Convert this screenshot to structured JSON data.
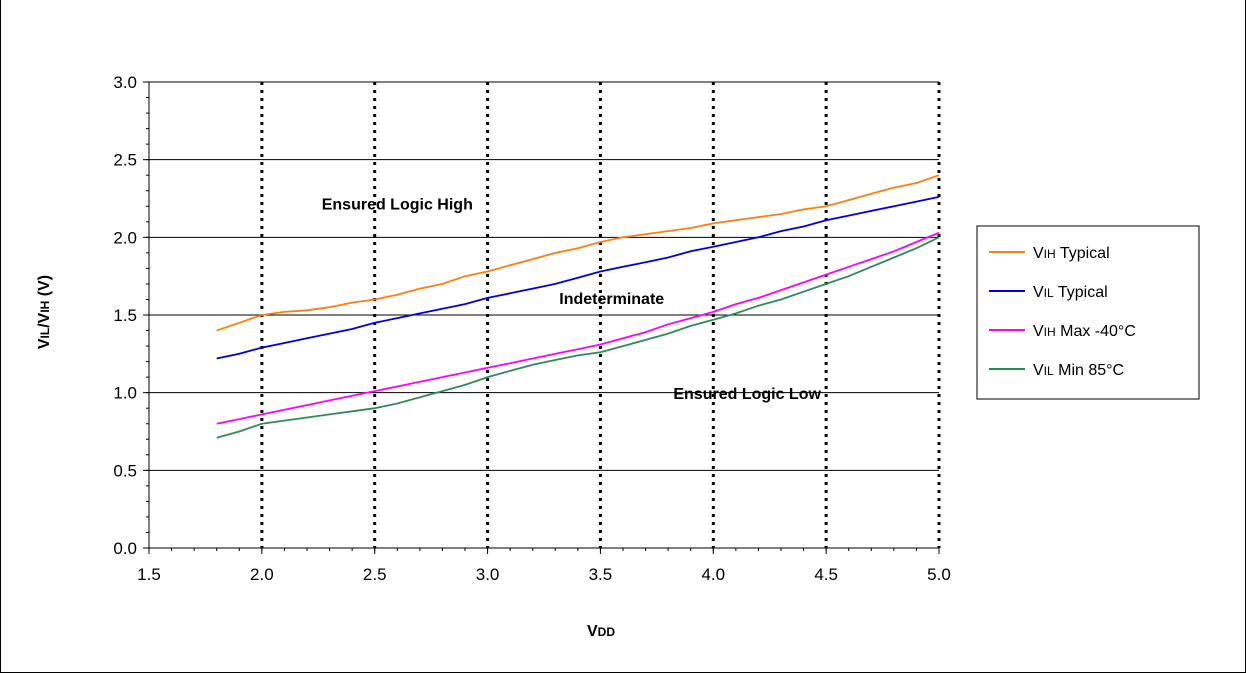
{
  "chart_data": {
    "type": "line",
    "xlabel": {
      "main": "V",
      "sub": "DD"
    },
    "ylabel": {
      "parts": [
        {
          "text": "V",
          "sub": false
        },
        {
          "text": "IL",
          "sub": true
        },
        {
          "text": "/V",
          "sub": false
        },
        {
          "text": "IH",
          "sub": true
        },
        {
          "text": " (V)",
          "sub": false
        }
      ]
    },
    "xlim": [
      1.5,
      5.0
    ],
    "ylim": [
      0.0,
      3.0
    ],
    "x_ticks": [
      "1.5",
      "2.0",
      "2.5",
      "3.0",
      "3.5",
      "4.0",
      "4.5",
      "5.0"
    ],
    "y_ticks": [
      "0.0",
      "0.5",
      "1.0",
      "1.5",
      "2.0",
      "2.5",
      "3.0"
    ],
    "grid": "horizontal solid lines at major y ticks; vertical dotted lines at major x ticks",
    "legend_position": "right",
    "annotations": [
      {
        "text": "Ensured Logic High",
        "x": 2.6,
        "y": 2.18
      },
      {
        "text": "Indeterminate",
        "x": 3.55,
        "y": 1.57
      },
      {
        "text": "Ensured Logic Low",
        "x": 4.15,
        "y": 0.96
      }
    ],
    "series": [
      {
        "name": "VIH Typical",
        "label_main": "V",
        "label_sub": "IH",
        "label_rest": " Typical",
        "color": "#ff7f0e",
        "points": [
          [
            1.8,
            1.4
          ],
          [
            1.9,
            1.45
          ],
          [
            2.0,
            1.5
          ],
          [
            2.1,
            1.52
          ],
          [
            2.2,
            1.53
          ],
          [
            2.3,
            1.55
          ],
          [
            2.4,
            1.58
          ],
          [
            2.5,
            1.6
          ],
          [
            2.6,
            1.63
          ],
          [
            2.7,
            1.67
          ],
          [
            2.8,
            1.7
          ],
          [
            2.9,
            1.75
          ],
          [
            3.0,
            1.78
          ],
          [
            3.1,
            1.82
          ],
          [
            3.2,
            1.86
          ],
          [
            3.3,
            1.9
          ],
          [
            3.4,
            1.93
          ],
          [
            3.5,
            1.97
          ],
          [
            3.6,
            2.0
          ],
          [
            3.7,
            2.02
          ],
          [
            3.8,
            2.04
          ],
          [
            3.9,
            2.06
          ],
          [
            4.0,
            2.09
          ],
          [
            4.1,
            2.11
          ],
          [
            4.2,
            2.13
          ],
          [
            4.3,
            2.15
          ],
          [
            4.4,
            2.18
          ],
          [
            4.5,
            2.2
          ],
          [
            4.6,
            2.24
          ],
          [
            4.7,
            2.28
          ],
          [
            4.8,
            2.32
          ],
          [
            4.9,
            2.35
          ],
          [
            5.0,
            2.4
          ]
        ]
      },
      {
        "name": "VIL Typical",
        "label_main": "V",
        "label_sub": "IL",
        "label_rest": " Typical",
        "color": "#0000dd",
        "points": [
          [
            1.8,
            1.22
          ],
          [
            1.9,
            1.25
          ],
          [
            2.0,
            1.29
          ],
          [
            2.1,
            1.32
          ],
          [
            2.2,
            1.35
          ],
          [
            2.3,
            1.38
          ],
          [
            2.4,
            1.41
          ],
          [
            2.5,
            1.45
          ],
          [
            2.6,
            1.48
          ],
          [
            2.7,
            1.51
          ],
          [
            2.8,
            1.54
          ],
          [
            2.9,
            1.57
          ],
          [
            3.0,
            1.61
          ],
          [
            3.1,
            1.64
          ],
          [
            3.2,
            1.67
          ],
          [
            3.3,
            1.7
          ],
          [
            3.4,
            1.74
          ],
          [
            3.5,
            1.78
          ],
          [
            3.6,
            1.81
          ],
          [
            3.7,
            1.84
          ],
          [
            3.8,
            1.87
          ],
          [
            3.9,
            1.91
          ],
          [
            4.0,
            1.94
          ],
          [
            4.1,
            1.97
          ],
          [
            4.2,
            2.0
          ],
          [
            4.3,
            2.04
          ],
          [
            4.4,
            2.07
          ],
          [
            4.5,
            2.11
          ],
          [
            4.6,
            2.14
          ],
          [
            4.7,
            2.17
          ],
          [
            4.8,
            2.2
          ],
          [
            4.9,
            2.23
          ],
          [
            5.0,
            2.26
          ]
        ]
      },
      {
        "name": "VIH Max -40°C",
        "label_main": "V",
        "label_sub": "IH",
        "label_rest": " Max -40°C",
        "color": "#ff00ff",
        "points": [
          [
            1.8,
            0.8
          ],
          [
            1.9,
            0.83
          ],
          [
            2.0,
            0.86
          ],
          [
            2.1,
            0.89
          ],
          [
            2.2,
            0.92
          ],
          [
            2.3,
            0.95
          ],
          [
            2.4,
            0.98
          ],
          [
            2.5,
            1.01
          ],
          [
            2.6,
            1.04
          ],
          [
            2.7,
            1.07
          ],
          [
            2.8,
            1.1
          ],
          [
            2.9,
            1.13
          ],
          [
            3.0,
            1.16
          ],
          [
            3.1,
            1.19
          ],
          [
            3.2,
            1.22
          ],
          [
            3.3,
            1.25
          ],
          [
            3.4,
            1.28
          ],
          [
            3.5,
            1.31
          ],
          [
            3.6,
            1.35
          ],
          [
            3.7,
            1.39
          ],
          [
            3.8,
            1.44
          ],
          [
            3.9,
            1.48
          ],
          [
            4.0,
            1.52
          ],
          [
            4.1,
            1.57
          ],
          [
            4.2,
            1.61
          ],
          [
            4.3,
            1.66
          ],
          [
            4.4,
            1.71
          ],
          [
            4.5,
            1.76
          ],
          [
            4.6,
            1.81
          ],
          [
            4.7,
            1.86
          ],
          [
            4.8,
            1.91
          ],
          [
            4.9,
            1.97
          ],
          [
            5.0,
            2.03
          ]
        ]
      },
      {
        "name": "VIL Min 85°C",
        "label_main": "V",
        "label_sub": "IL",
        "label_rest": " Min 85°C",
        "color": "#2e8b57",
        "points": [
          [
            1.8,
            0.71
          ],
          [
            1.9,
            0.75
          ],
          [
            2.0,
            0.8
          ],
          [
            2.1,
            0.82
          ],
          [
            2.2,
            0.84
          ],
          [
            2.3,
            0.86
          ],
          [
            2.4,
            0.88
          ],
          [
            2.5,
            0.9
          ],
          [
            2.6,
            0.93
          ],
          [
            2.7,
            0.97
          ],
          [
            2.8,
            1.01
          ],
          [
            2.9,
            1.05
          ],
          [
            3.0,
            1.1
          ],
          [
            3.1,
            1.14
          ],
          [
            3.2,
            1.18
          ],
          [
            3.3,
            1.21
          ],
          [
            3.4,
            1.24
          ],
          [
            3.5,
            1.26
          ],
          [
            3.6,
            1.3
          ],
          [
            3.7,
            1.34
          ],
          [
            3.8,
            1.38
          ],
          [
            3.9,
            1.43
          ],
          [
            4.0,
            1.47
          ],
          [
            4.1,
            1.51
          ],
          [
            4.2,
            1.56
          ],
          [
            4.3,
            1.6
          ],
          [
            4.4,
            1.65
          ],
          [
            4.5,
            1.7
          ],
          [
            4.6,
            1.75
          ],
          [
            4.7,
            1.81
          ],
          [
            4.8,
            1.87
          ],
          [
            4.9,
            1.93
          ],
          [
            5.0,
            2.0
          ]
        ]
      }
    ]
  }
}
